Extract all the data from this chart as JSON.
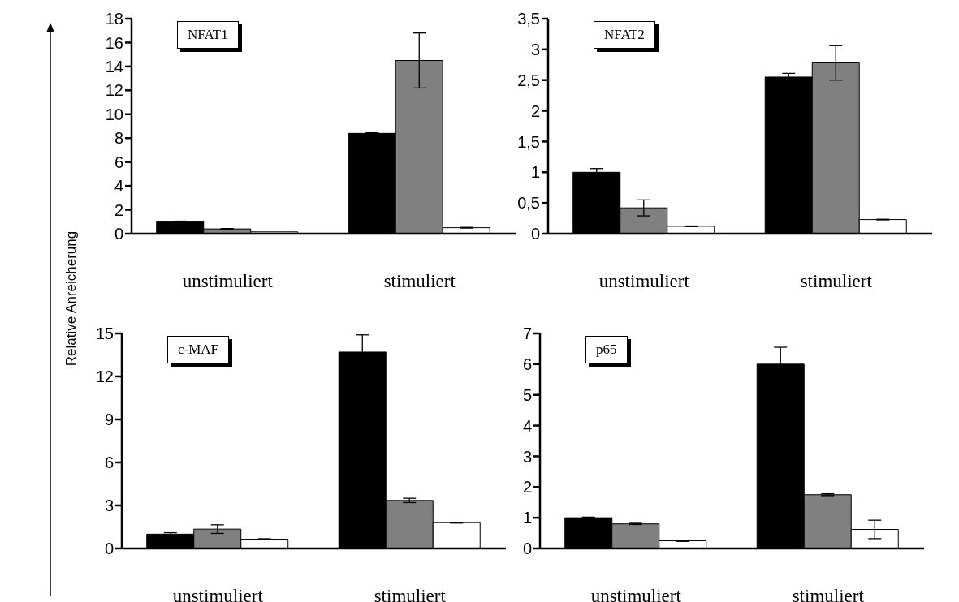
{
  "chart_data": [
    {
      "type": "bar",
      "title": "NFAT1",
      "ylabel": "Relative Anreicherung",
      "categories": [
        "unstimuliert",
        "stimuliert"
      ],
      "ylim": [
        0,
        18
      ],
      "yticks": [
        0,
        2,
        4,
        6,
        8,
        10,
        12,
        14,
        16,
        18
      ],
      "series": [
        {
          "color": "#000000",
          "values": [
            1.0,
            8.4
          ],
          "errors": [
            0.05,
            0.05
          ]
        },
        {
          "color": "#808080",
          "values": [
            0.4,
            14.5
          ],
          "errors": [
            0.03,
            2.3
          ]
        },
        {
          "color": "#ffffff",
          "values": [
            0.15,
            0.5
          ],
          "errors": [
            null,
            0.03
          ]
        }
      ]
    },
    {
      "type": "bar",
      "title": "NFAT2",
      "categories": [
        "unstimuliert",
        "stimuliert"
      ],
      "ylim": [
        0,
        3.5
      ],
      "yticks": [
        0,
        {
          "value": 0.5,
          "label": "0,5"
        },
        1,
        {
          "value": 1.5,
          "label": "1,5"
        },
        2,
        {
          "value": 2.5,
          "label": "2,5"
        },
        3,
        {
          "value": 3.5,
          "label": "3,5"
        }
      ],
      "series": [
        {
          "color": "#000000",
          "values": [
            1.0,
            2.55
          ],
          "errors": [
            0.06,
            0.06
          ]
        },
        {
          "color": "#808080",
          "values": [
            0.42,
            2.78
          ],
          "errors": [
            0.13,
            0.28
          ]
        },
        {
          "color": "#ffffff",
          "values": [
            0.12,
            0.23
          ],
          "errors": [
            0.005,
            0.005
          ]
        }
      ]
    },
    {
      "type": "bar",
      "title": "c-MAF",
      "categories": [
        "unstimuliert",
        "stimuliert"
      ],
      "ylim": [
        0,
        15
      ],
      "yticks": [
        0,
        3,
        6,
        9,
        12,
        15
      ],
      "series": [
        {
          "color": "#000000",
          "values": [
            1.0,
            13.7
          ],
          "errors": [
            0.1,
            1.2
          ]
        },
        {
          "color": "#808080",
          "values": [
            1.35,
            3.35
          ],
          "errors": [
            0.3,
            0.15
          ]
        },
        {
          "color": "#ffffff",
          "values": [
            0.65,
            1.8
          ],
          "errors": [
            0.03,
            0.03
          ]
        }
      ]
    },
    {
      "type": "bar",
      "title": "p65",
      "categories": [
        "unstimuliert",
        "stimuliert"
      ],
      "ylim": [
        0,
        7
      ],
      "yticks": [
        0,
        1,
        2,
        3,
        4,
        5,
        6,
        7
      ],
      "series": [
        {
          "color": "#000000",
          "values": [
            1.0,
            6.0
          ],
          "errors": [
            0.02,
            0.55
          ]
        },
        {
          "color": "#808080",
          "values": [
            0.8,
            1.75
          ],
          "errors": [
            0.02,
            0.03
          ]
        },
        {
          "color": "#ffffff",
          "values": [
            0.25,
            0.62
          ],
          "errors": [
            0.02,
            0.3
          ]
        }
      ]
    }
  ]
}
